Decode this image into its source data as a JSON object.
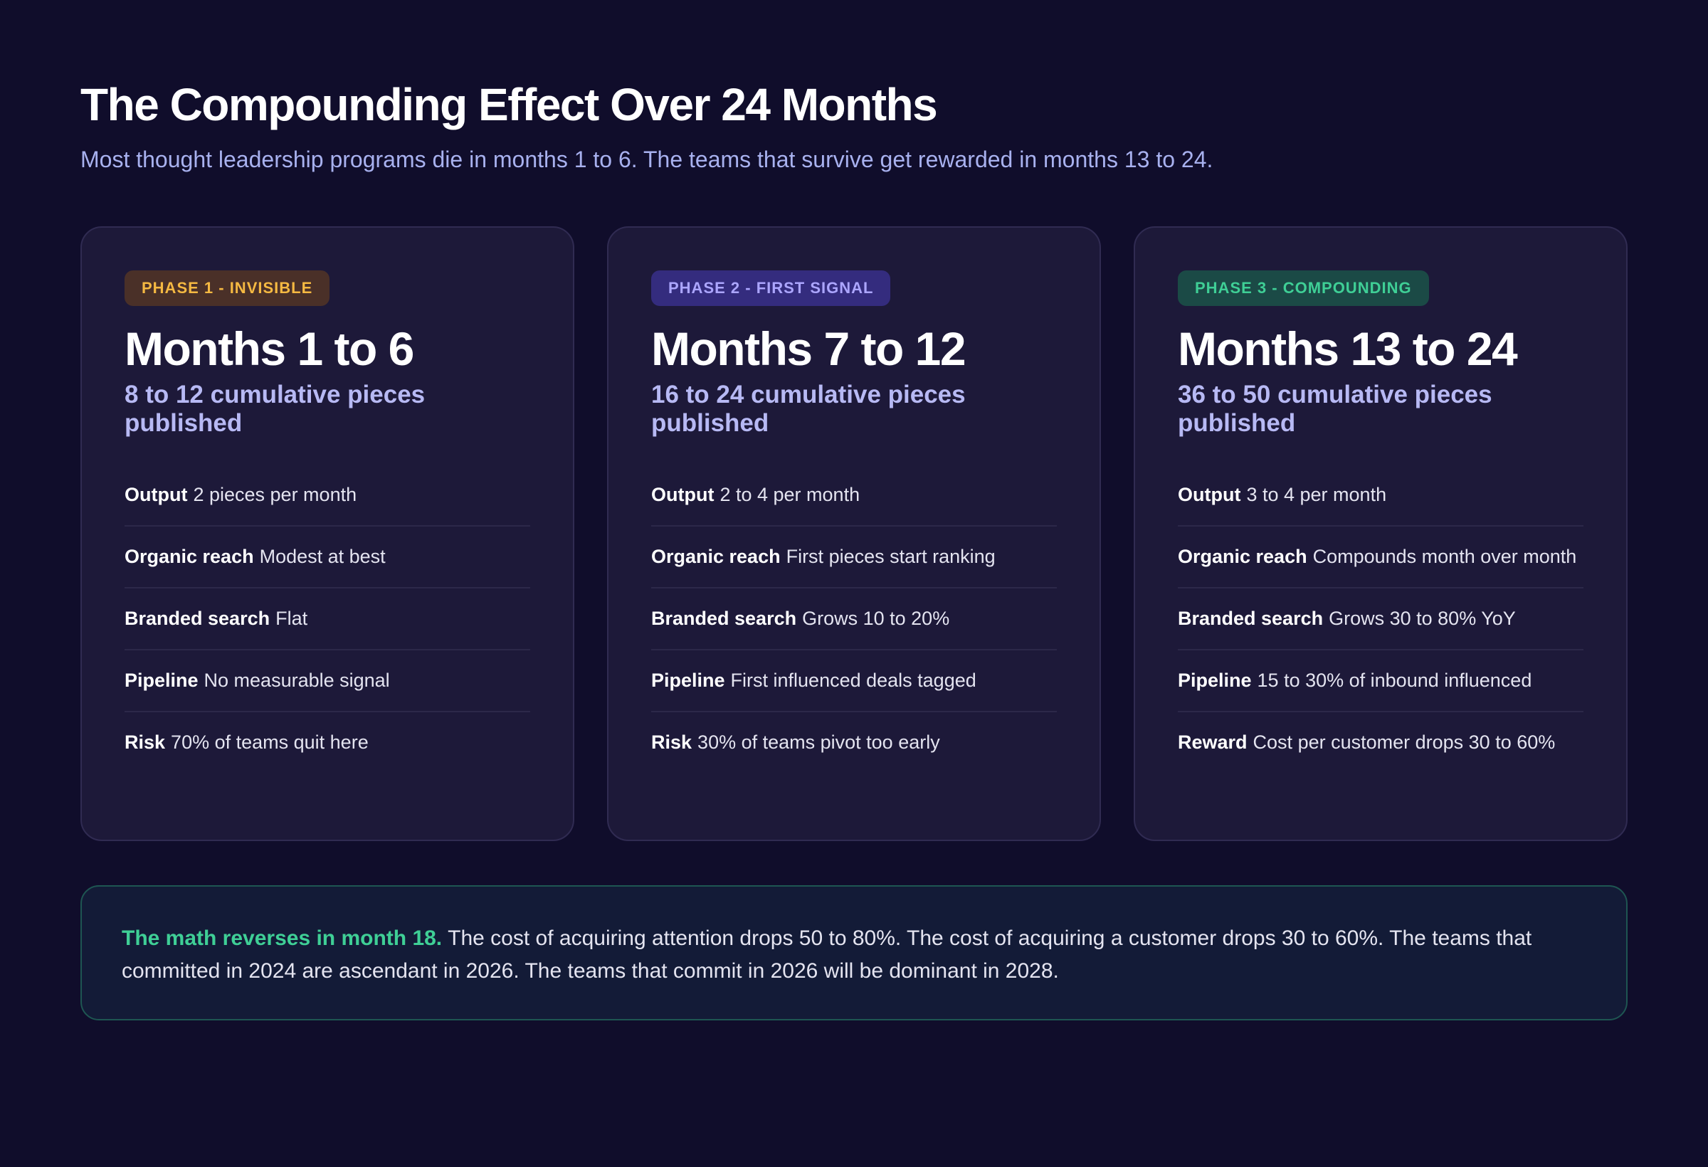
{
  "header": {
    "title": "The Compounding Effect Over 24 Months",
    "subtitle": "Most thought leadership programs die in months 1 to 6. The teams that survive get rewarded in months 13 to 24."
  },
  "phases": [
    {
      "badge": "PHASE 1 - INVISIBLE",
      "heading": "Months 1 to 6",
      "subheading": "8 to 12 cumulative pieces published",
      "rows": [
        {
          "label": "Output",
          "text": "2 pieces per month"
        },
        {
          "label": "Organic reach",
          "text": "Modest at best"
        },
        {
          "label": "Branded search",
          "text": "Flat"
        },
        {
          "label": "Pipeline",
          "text": "No measurable signal"
        },
        {
          "label": "Risk",
          "text": "70% of teams quit here"
        }
      ]
    },
    {
      "badge": "PHASE 2 - FIRST SIGNAL",
      "heading": "Months 7 to 12",
      "subheading": "16 to 24 cumulative pieces published",
      "rows": [
        {
          "label": "Output",
          "text": "2 to 4 per month"
        },
        {
          "label": "Organic reach",
          "text": "First pieces start ranking"
        },
        {
          "label": "Branded search",
          "text": "Grows 10 to 20%"
        },
        {
          "label": "Pipeline",
          "text": "First influenced deals tagged"
        },
        {
          "label": "Risk",
          "text": "30% of teams pivot too early"
        }
      ]
    },
    {
      "badge": "PHASE 3 - COMPOUNDING",
      "heading": "Months 13 to 24",
      "subheading": "36 to 50 cumulative pieces published",
      "rows": [
        {
          "label": "Output",
          "text": "3 to 4 per month"
        },
        {
          "label": "Organic reach",
          "text": "Compounds month over month"
        },
        {
          "label": "Branded search",
          "text": "Grows 30 to 80% YoY"
        },
        {
          "label": "Pipeline",
          "text": "15 to 30% of inbound influenced"
        },
        {
          "label": "Reward",
          "text": "Cost per customer drops 30 to 60%"
        }
      ]
    }
  ],
  "callout": {
    "highlight": "The math reverses in month 18.",
    "text": "The cost of acquiring attention drops 50 to 80%. The cost of acquiring a customer drops 30 to 60%. The teams that committed in 2024 are ascendant in 2026. The teams that commit in 2026 will be dominant in 2028."
  }
}
